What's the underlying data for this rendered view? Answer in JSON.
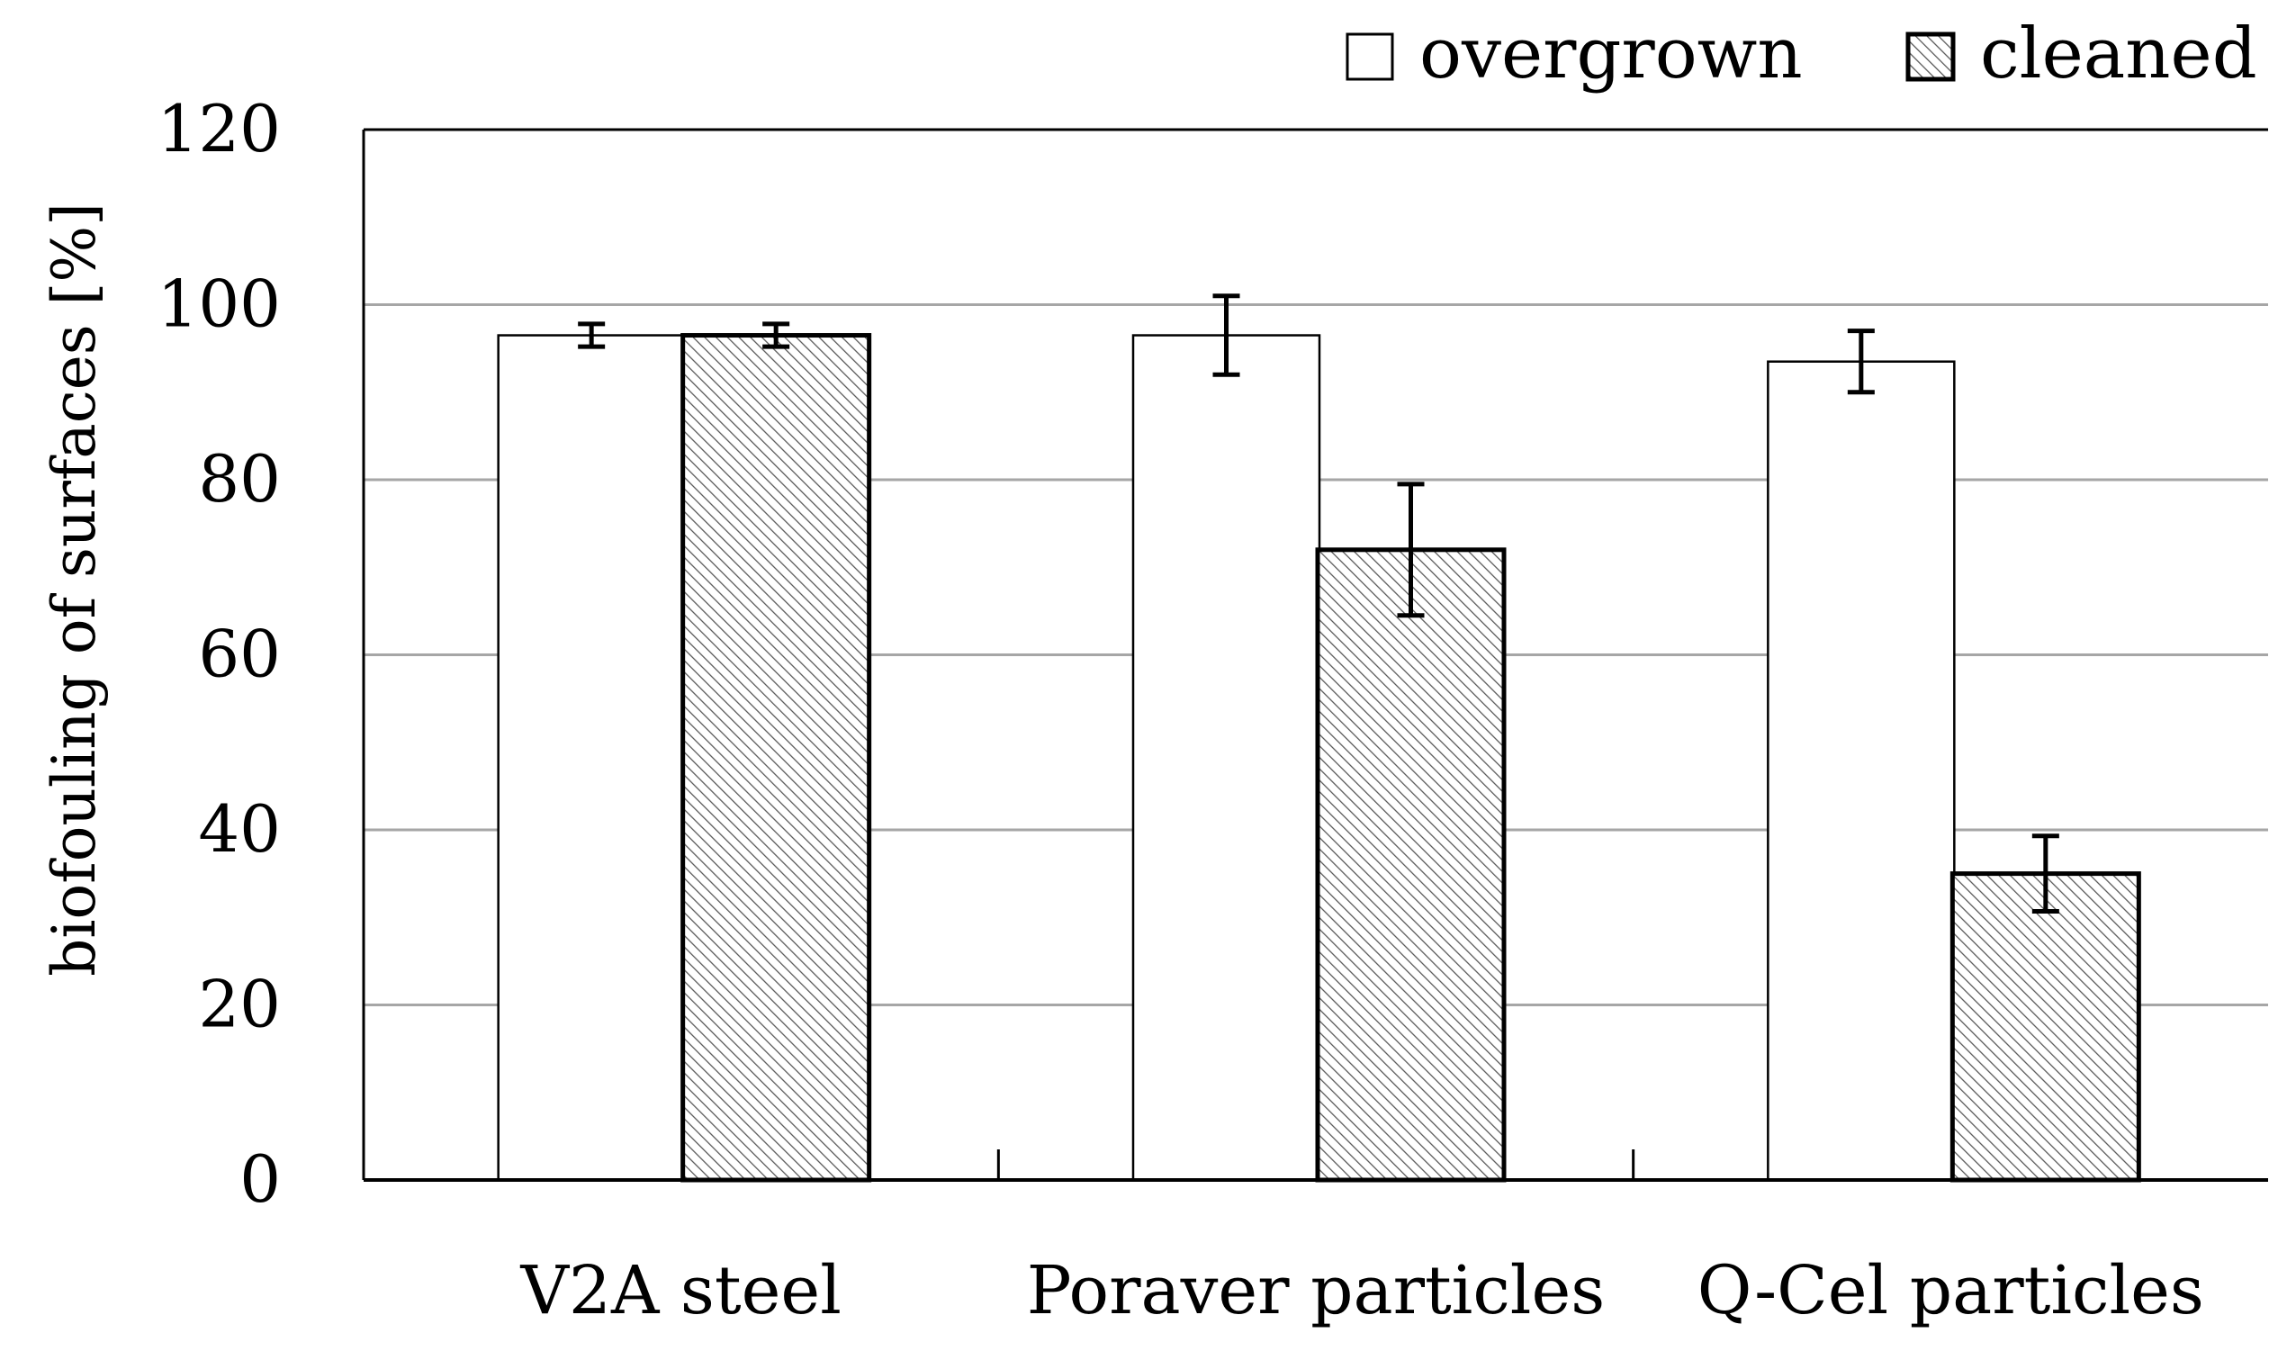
{
  "chart_data": {
    "type": "bar",
    "title": "",
    "xlabel": "",
    "ylabel": "biofouling of surfaces [%]",
    "ylim": [
      0,
      120
    ],
    "yticks": [
      0,
      20,
      40,
      60,
      80,
      100,
      120
    ],
    "grid": true,
    "legend_position": "top-right",
    "categories": [
      "V2A steel",
      "Poraver particles",
      "Q-Cel particles"
    ],
    "series": [
      {
        "name": "overgrown",
        "pattern": "solid",
        "color": "#ffffff",
        "values": [
          96.5,
          96.5,
          93.5
        ],
        "errors": [
          1.3,
          4.5,
          3.5
        ]
      },
      {
        "name": "cleaned",
        "pattern": "hatched",
        "color": "#ffffff",
        "values": [
          96.5,
          72.0,
          35.0
        ],
        "errors": [
          1.3,
          7.5,
          4.3
        ]
      }
    ],
    "colors": {
      "axis": "#000000",
      "grid": "#a6a6a6",
      "hatch": "#555555"
    }
  }
}
